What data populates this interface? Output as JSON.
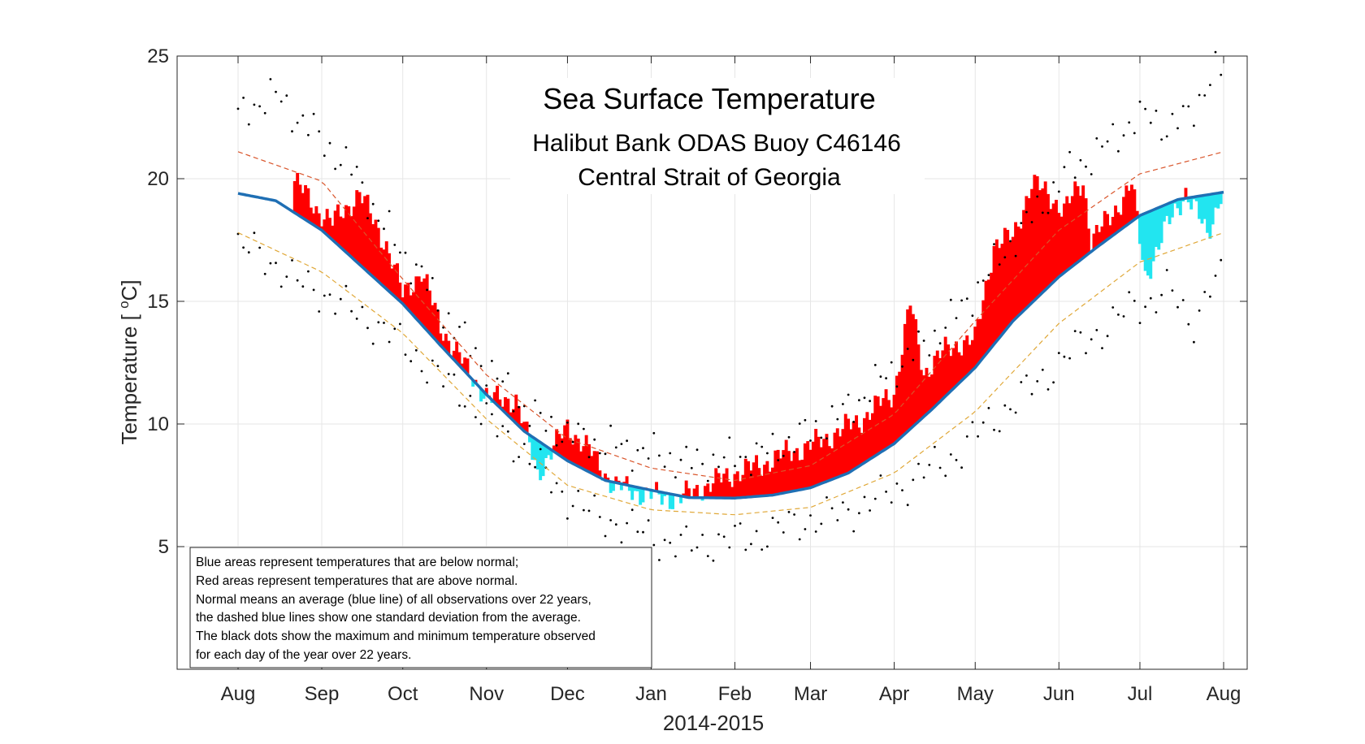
{
  "chart_data": {
    "type": "line",
    "title": "Sea Surface Temperature",
    "subtitle_lines": [
      "Halibut Bank ODAS Buoy C46146",
      "Central Strait of Georgia"
    ],
    "xlabel": "2014-2015",
    "ylabel_prefix": "Temperature [ ",
    "ylabel_sup": "o",
    "ylabel_suffix": "C]",
    "x_range": [
      "2014-08-01",
      "2015-08-01"
    ],
    "ylim": [
      0,
      25
    ],
    "yticks": [
      5,
      10,
      15,
      20,
      25
    ],
    "xticks": [
      {
        "date": "2014-08-01",
        "label": "Aug"
      },
      {
        "date": "2014-09-01",
        "label": "Sep"
      },
      {
        "date": "2014-10-01",
        "label": "Oct"
      },
      {
        "date": "2014-11-01",
        "label": "Nov"
      },
      {
        "date": "2014-12-01",
        "label": "Dec"
      },
      {
        "date": "2015-01-01",
        "label": "Jan"
      },
      {
        "date": "2015-02-01",
        "label": "Feb"
      },
      {
        "date": "2015-03-01",
        "label": "Mar"
      },
      {
        "date": "2015-04-01",
        "label": "Apr"
      },
      {
        "date": "2015-05-01",
        "label": "May"
      },
      {
        "date": "2015-06-01",
        "label": "Jun"
      },
      {
        "date": "2015-07-01",
        "label": "Jul"
      },
      {
        "date": "2015-08-01",
        "label": "Aug"
      }
    ],
    "grid": true,
    "colors": {
      "normal": "#1f6fb4",
      "above_normal": "#ff0000",
      "below_normal": "#22e5f0",
      "upper_std": "#d9552b",
      "lower_std": "#e0a838",
      "extremes": "#000000"
    },
    "normal": {
      "dates": [
        "2014-08-01",
        "2014-08-15",
        "2014-09-01",
        "2014-09-15",
        "2014-10-01",
        "2014-10-15",
        "2014-11-01",
        "2014-11-15",
        "2014-12-01",
        "2014-12-15",
        "2015-01-01",
        "2015-01-15",
        "2015-02-01",
        "2015-02-15",
        "2015-03-01",
        "2015-03-15",
        "2015-04-01",
        "2015-04-15",
        "2015-05-01",
        "2015-05-15",
        "2015-06-01",
        "2015-06-15",
        "2015-07-01",
        "2015-07-15",
        "2015-08-01"
      ],
      "values": [
        19.4,
        19.1,
        17.9,
        16.5,
        14.9,
        13.2,
        11.2,
        9.7,
        8.5,
        7.7,
        7.3,
        7.0,
        6.98,
        7.1,
        7.4,
        8.0,
        9.2,
        10.6,
        12.3,
        14.2,
        16.0,
        17.2,
        18.5,
        19.15,
        19.45
      ]
    },
    "std_upper": {
      "dates": [
        "2014-08-01",
        "2014-09-01",
        "2014-10-01",
        "2014-11-01",
        "2014-12-01",
        "2015-01-01",
        "2015-02-01",
        "2015-03-01",
        "2015-04-01",
        "2015-05-01",
        "2015-06-01",
        "2015-07-01",
        "2015-08-01"
      ],
      "values": [
        21.1,
        19.9,
        15.9,
        12.0,
        9.4,
        8.2,
        7.7,
        8.3,
        10.4,
        14.2,
        17.9,
        20.2,
        21.1
      ]
    },
    "std_lower": {
      "dates": [
        "2014-08-01",
        "2014-09-01",
        "2014-10-01",
        "2014-11-01",
        "2014-12-01",
        "2015-01-01",
        "2015-02-01",
        "2015-03-01",
        "2015-04-01",
        "2015-05-01",
        "2015-06-01",
        "2015-07-01",
        "2015-08-01"
      ],
      "values": [
        17.8,
        16.2,
        13.7,
        10.2,
        7.5,
        6.5,
        6.3,
        6.6,
        8.0,
        10.5,
        14.1,
        16.6,
        17.8
      ]
    },
    "observed": {
      "dates": [
        "2014-08-22",
        "2014-08-30",
        "2014-09-05",
        "2014-09-15",
        "2014-09-25",
        "2014-10-01",
        "2014-10-08",
        "2014-10-15",
        "2014-10-25",
        "2014-11-02",
        "2014-11-12",
        "2014-11-20",
        "2014-12-01",
        "2014-12-10",
        "2014-12-18",
        "2014-12-28",
        "2015-01-05",
        "2015-01-12",
        "2015-01-22",
        "2015-02-01",
        "2015-02-10",
        "2015-02-20",
        "2015-03-01",
        "2015-03-10",
        "2015-03-20",
        "2015-04-01",
        "2015-04-07",
        "2015-04-12",
        "2015-04-20",
        "2015-04-25",
        "2015-05-01",
        "2015-05-08",
        "2015-05-15",
        "2015-05-22",
        "2015-05-28",
        "2015-06-03",
        "2015-06-10",
        "2015-06-13",
        "2015-06-20",
        "2015-06-28",
        "2015-07-03",
        "2015-07-10",
        "2015-07-18",
        "2015-07-26",
        "2015-07-31"
      ],
      "values": [
        19.9,
        18.8,
        18.2,
        19.4,
        17.3,
        15.3,
        16.2,
        14.0,
        12.2,
        11.0,
        11.0,
        8.0,
        9.9,
        8.8,
        7.5,
        7.2,
        7.0,
        7.0,
        7.5,
        8.0,
        8.3,
        8.8,
        9.1,
        9.6,
        10.2,
        11.3,
        14.9,
        12.1,
        13.0,
        13.3,
        13.4,
        17.3,
        17.6,
        19.8,
        19.4,
        18.7,
        19.9,
        17.5,
        18.4,
        19.8,
        16.0,
        17.8,
        19.5,
        17.7,
        19.4
      ]
    },
    "daily_max": {
      "dates": [
        "2014-08-01",
        "2014-08-08",
        "2014-08-15",
        "2014-08-22",
        "2014-08-30",
        "2014-09-06",
        "2014-09-14",
        "2014-09-22",
        "2014-10-01",
        "2014-10-08",
        "2014-10-15",
        "2014-10-24",
        "2014-11-02",
        "2014-11-12",
        "2014-11-22",
        "2014-12-01",
        "2014-12-12",
        "2014-12-24",
        "2015-01-05",
        "2015-01-15",
        "2015-01-25",
        "2015-02-05",
        "2015-02-15",
        "2015-02-25",
        "2015-03-07",
        "2015-03-17",
        "2015-03-27",
        "2015-04-05",
        "2015-04-15",
        "2015-04-25",
        "2015-05-05",
        "2015-05-15",
        "2015-05-25",
        "2015-06-04",
        "2015-06-12",
        "2015-06-20",
        "2015-06-28",
        "2015-07-05",
        "2015-07-12",
        "2015-07-20",
        "2015-07-28"
      ],
      "values": [
        22.5,
        23.1,
        23.4,
        22.6,
        21.8,
        21.0,
        20.1,
        18.4,
        17.0,
        16.0,
        14.7,
        13.4,
        12.2,
        11.0,
        10.0,
        9.6,
        9.2,
        9.0,
        8.7,
        8.4,
        8.5,
        8.7,
        8.9,
        9.5,
        10.0,
        10.8,
        11.8,
        12.6,
        13.5,
        14.6,
        16.0,
        17.5,
        18.8,
        20.3,
        20.8,
        21.5,
        22.3,
        22.6,
        22.0,
        22.7,
        24.3
      ]
    },
    "daily_min": {
      "dates": [
        "2014-08-01",
        "2014-08-08",
        "2014-08-15",
        "2014-08-22",
        "2014-08-30",
        "2014-09-06",
        "2014-09-14",
        "2014-09-22",
        "2014-10-01",
        "2014-10-08",
        "2014-10-15",
        "2014-10-24",
        "2014-11-02",
        "2014-11-12",
        "2014-11-22",
        "2014-12-01",
        "2014-12-12",
        "2014-12-24",
        "2015-01-05",
        "2015-01-15",
        "2015-01-25",
        "2015-02-05",
        "2015-02-15",
        "2015-02-25",
        "2015-03-07",
        "2015-03-17",
        "2015-03-27",
        "2015-04-05",
        "2015-04-15",
        "2015-04-25",
        "2015-05-05",
        "2015-05-15",
        "2015-05-25",
        "2015-06-04",
        "2015-06-12",
        "2015-06-20",
        "2015-06-28",
        "2015-07-05",
        "2015-07-12",
        "2015-07-20",
        "2015-07-28"
      ],
      "values": [
        17.2,
        17.0,
        16.5,
        15.8,
        15.5,
        15.0,
        14.5,
        14.0,
        13.2,
        12.6,
        11.8,
        11.2,
        10.0,
        9.2,
        8.0,
        7.0,
        6.2,
        5.8,
        5.2,
        5.0,
        5.2,
        5.3,
        5.6,
        6.0,
        6.2,
        6.5,
        7.0,
        7.5,
        8.2,
        8.8,
        10.0,
        10.8,
        11.8,
        12.8,
        13.5,
        14.0,
        14.8,
        15.0,
        15.5,
        14.0,
        15.8
      ]
    },
    "annotation_lines": [
      "Blue areas represent temperatures that are below normal;",
      "Red areas represent temperatures that are above normal.",
      "Normal means an average (blue line) of all observations over 22 years,",
      "the dashed blue lines show one standard deviation from the average.",
      "The black dots show the maximum and minimum temperature observed",
      "for each day of the year over 22 years."
    ]
  }
}
